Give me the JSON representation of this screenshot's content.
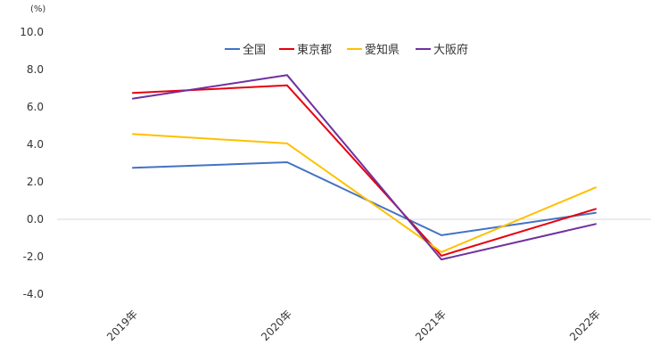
{
  "chart_data": {
    "type": "line",
    "unit_label": "(%)",
    "categories": [
      "2019年",
      "2020年",
      "2021年",
      "2022年"
    ],
    "y_ticks": [
      "10.0",
      "8.0",
      "6.0",
      "4.0",
      "2.0",
      "0.0",
      "-2.0",
      "-4.0"
    ],
    "ylim": [
      -4,
      10
    ],
    "grid": "zero line only",
    "legend_position": "top",
    "series": [
      {
        "name": "全国",
        "color": "#4472C4",
        "values": [
          2.75,
          3.05,
          -0.85,
          0.35
        ]
      },
      {
        "name": "東京都",
        "color": "#E8000B",
        "values": [
          6.75,
          7.15,
          -1.95,
          0.55
        ]
      },
      {
        "name": "愛知県",
        "color": "#FFC000",
        "values": [
          4.55,
          4.05,
          -1.75,
          1.7
        ]
      },
      {
        "name": "大阪府",
        "color": "#7030A0",
        "values": [
          6.45,
          7.7,
          -2.15,
          -0.25
        ]
      }
    ]
  }
}
